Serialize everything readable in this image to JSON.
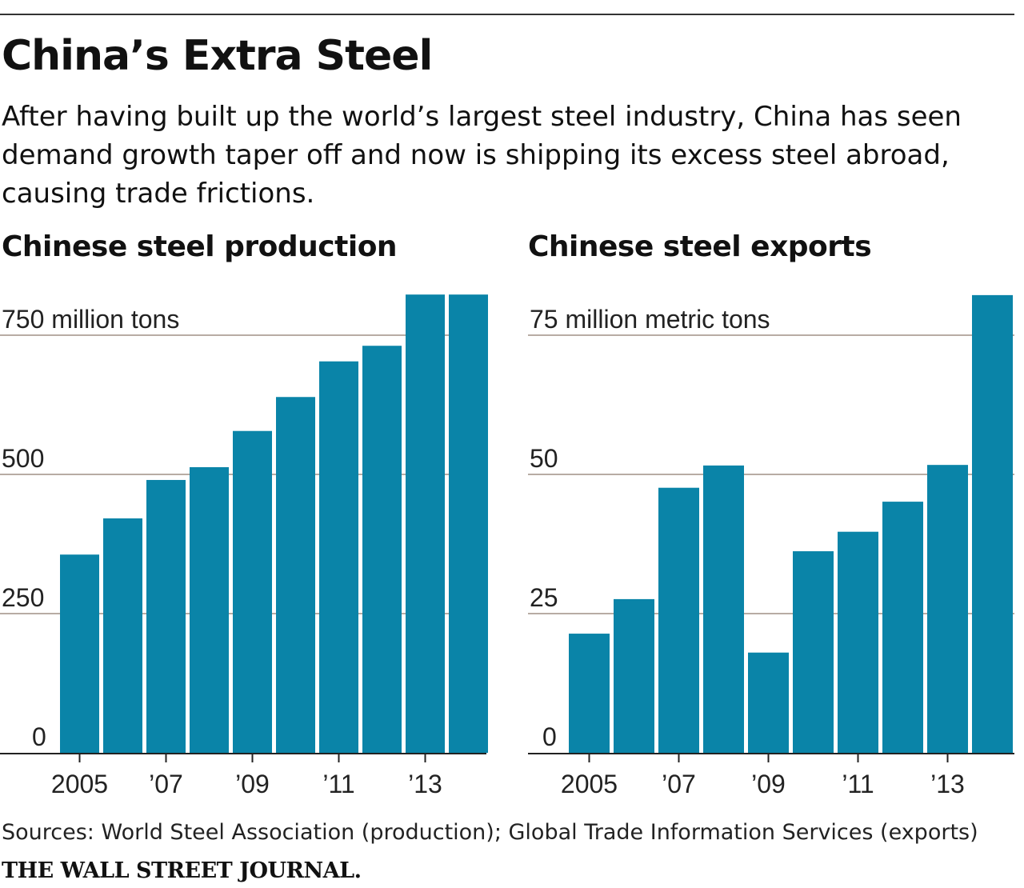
{
  "title": "China’s Extra Steel",
  "subtitle": "After having built up the world’s largest steel industry, China has seen demand growth taper off and now is shipping its excess steel abroad, causing trade frictions.",
  "source": "Sources: World Steel Association (production); Global Trade Information Services (exports)",
  "brand": "THE WALL STREET JOURNAL.",
  "bar_color": "#0a84a8",
  "chart_data": [
    {
      "type": "bar",
      "title": "Chinese steel production",
      "unit_label": "750 million tons",
      "categories": [
        "2005",
        "2006",
        "2007",
        "2008",
        "2009",
        "2010",
        "2011",
        "2012",
        "2013",
        "2014"
      ],
      "values": [
        356,
        421,
        490,
        513,
        578,
        639,
        703,
        731,
        823,
        823
      ],
      "ylim": [
        0,
        823
      ],
      "yticks": [
        0,
        250,
        500,
        750
      ],
      "ytick_labels": [
        "0",
        "250",
        "500",
        "750 million tons"
      ],
      "xtick_labels": [
        "2005",
        "’07",
        "’09",
        "’11",
        "’13"
      ],
      "grid": true
    },
    {
      "type": "bar",
      "title": "Chinese steel exports",
      "unit_label": "75 million metric tons",
      "categories": [
        "2005",
        "2006",
        "2007",
        "2008",
        "2009",
        "2010",
        "2011",
        "2012",
        "2013",
        "2014"
      ],
      "values": [
        21.4,
        27.6,
        47.6,
        51.6,
        18.0,
        36.2,
        39.7,
        45.1,
        51.7,
        82.2
      ],
      "ylim": [
        0,
        82.2
      ],
      "yticks": [
        0,
        25,
        50,
        75
      ],
      "ytick_labels": [
        "0",
        "25",
        "50",
        "75 million metric tons"
      ],
      "xtick_labels": [
        "2005",
        "’07",
        "’09",
        "’11",
        "’13"
      ],
      "grid": true
    }
  ]
}
